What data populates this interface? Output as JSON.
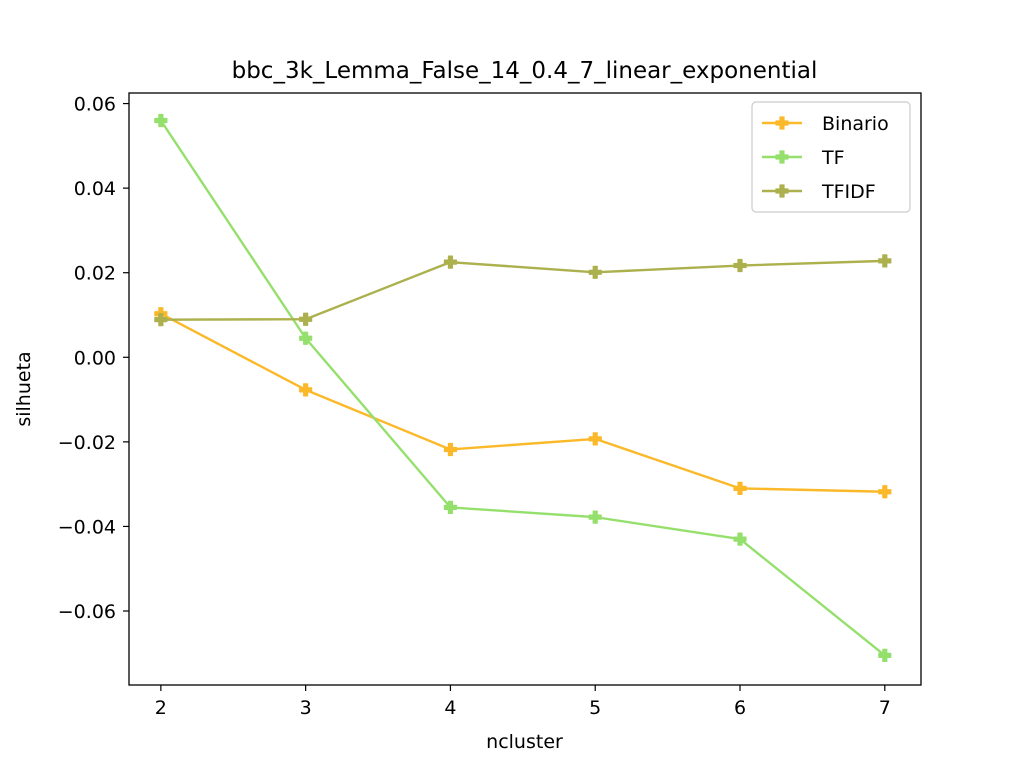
{
  "chart_data": {
    "type": "line",
    "title": "bbc_3k_Lemma_False_14_0.4_7_linear_exponential",
    "xlabel": "ncluster",
    "ylabel": "silhueta",
    "x": [
      2,
      3,
      4,
      5,
      6,
      7
    ],
    "xlim": [
      1.78,
      7.25
    ],
    "ylim": [
      -0.0775,
      0.0625
    ],
    "xticks": [
      2,
      3,
      4,
      5,
      6,
      7
    ],
    "yticks": [
      0.06,
      0.04,
      0.02,
      0.0,
      -0.02,
      -0.04,
      -0.06
    ],
    "ytick_labels": [
      "0.06",
      "0.04",
      "0.02",
      "0.00",
      "−0.02",
      "−0.04",
      "−0.06"
    ],
    "grid": false,
    "legend_position": "upper right",
    "marker": "plus-filled",
    "series": [
      {
        "name": "Binario",
        "color": "#FBB92A",
        "values": [
          0.0103,
          -0.0077,
          -0.0218,
          -0.0193,
          -0.031,
          -0.0318
        ]
      },
      {
        "name": "TF",
        "color": "#95E06D",
        "values": [
          0.056,
          0.0045,
          -0.0355,
          -0.0378,
          -0.043,
          -0.0705
        ]
      },
      {
        "name": "TFIDF",
        "color": "#ACB04D",
        "values": [
          0.0089,
          0.009,
          0.0225,
          0.0201,
          0.0217,
          0.0228
        ]
      }
    ]
  }
}
